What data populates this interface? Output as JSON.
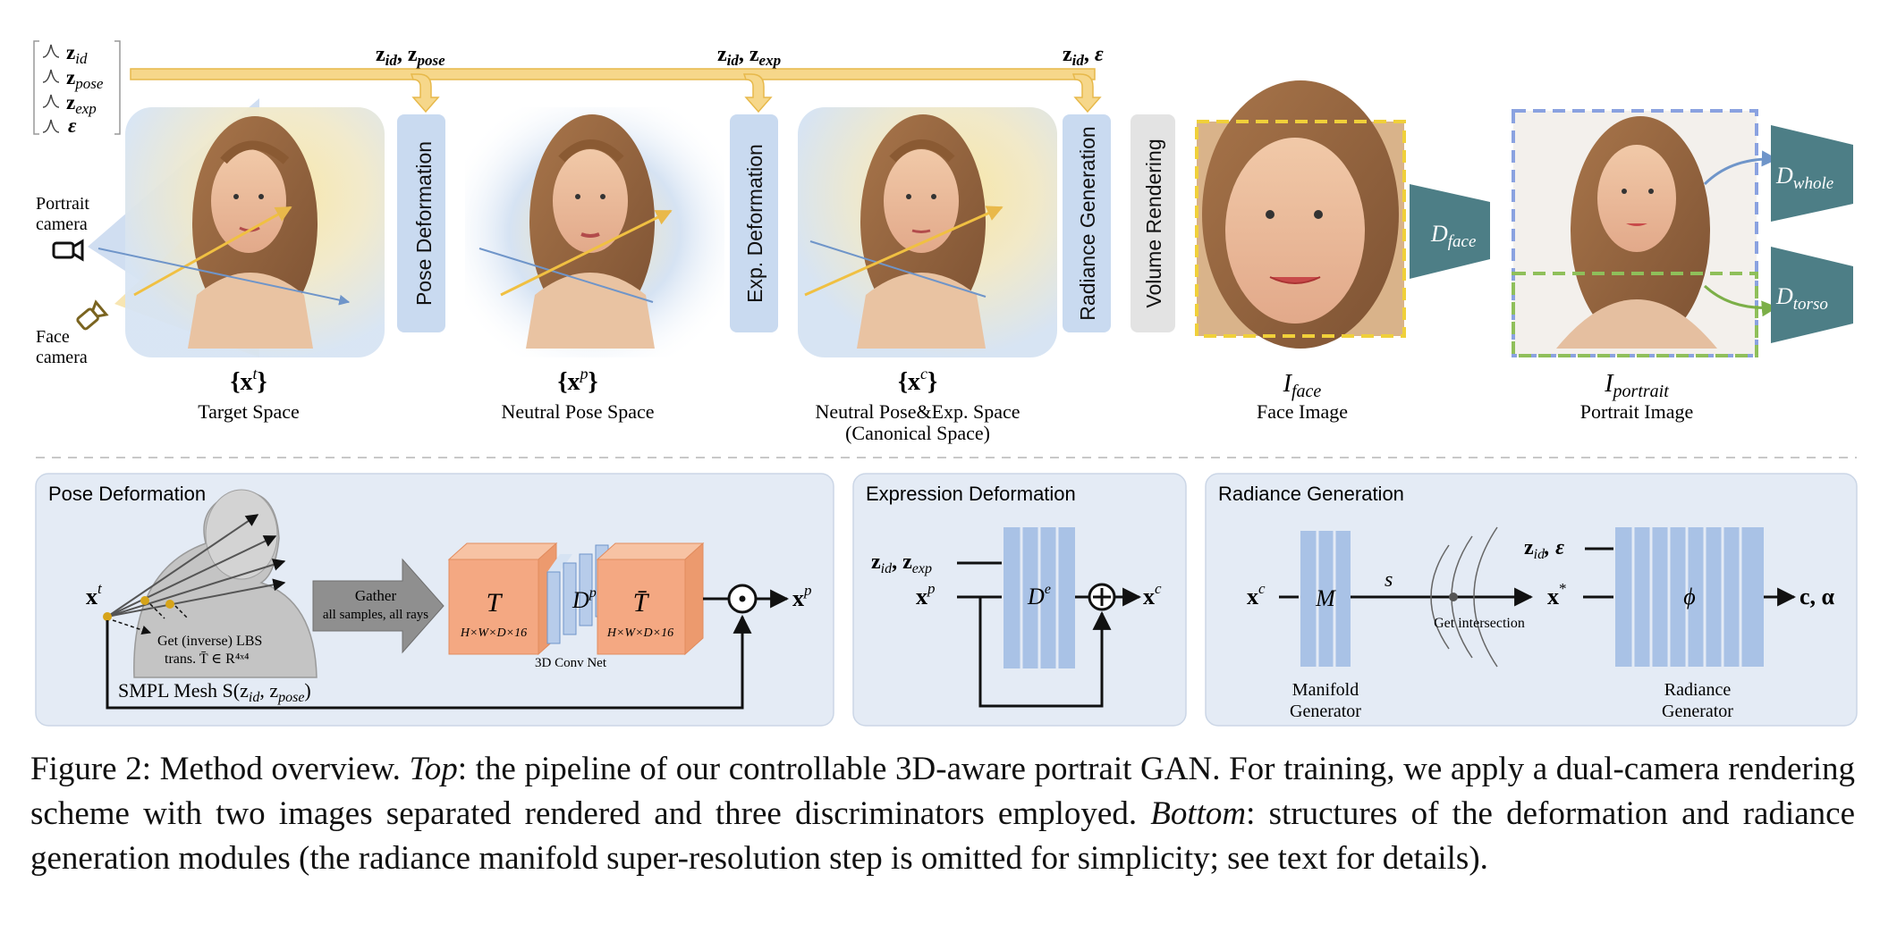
{
  "latent_box": {
    "items": [
      {
        "sym": "z",
        "sub": "id"
      },
      {
        "sym": "z",
        "sub": "pose"
      },
      {
        "sym": "z",
        "sub": "exp"
      },
      {
        "sym": "ε",
        "sub": ""
      }
    ]
  },
  "top_inputs": [
    {
      "a_sym": "z",
      "a_sub": "id",
      "b_sym": "z",
      "b_sub": "pose",
      "sep": ","
    },
    {
      "a_sym": "z",
      "a_sub": "id",
      "b_sym": "z",
      "b_sub": "exp",
      "sep": ","
    },
    {
      "a_sym": "z",
      "a_sub": "id",
      "b_sym": "ε",
      "b_sub": "",
      "sep": ","
    }
  ],
  "cameras": {
    "portrait": [
      "Portrait",
      "camera"
    ],
    "face": [
      "Face",
      "camera"
    ]
  },
  "modules": {
    "pose": "Pose Deformation",
    "exp": "Exp. Deformation",
    "radiance": "Radiance Generation",
    "volume": "Volume Rendering"
  },
  "spaces": [
    {
      "sym": "{x",
      "sup": "t",
      "close": "}",
      "name": "Target Space",
      "name2": ""
    },
    {
      "sym": "{x",
      "sup": "p",
      "close": "}",
      "name": "Neutral Pose Space",
      "name2": ""
    },
    {
      "sym": "{x",
      "sup": "c",
      "close": "}",
      "name": "Neutral Pose&Exp. Space",
      "name2": "(Canonical Space)"
    }
  ],
  "outputs": [
    {
      "sym": "I",
      "sub": "face",
      "name": "Face Image"
    },
    {
      "sym": "I",
      "sub": "portrait",
      "name": "Portrait Image"
    }
  ],
  "discriminators": [
    {
      "sym": "D",
      "sub": "face"
    },
    {
      "sym": "D",
      "sub": "whole"
    },
    {
      "sym": "D",
      "sub": "torso"
    }
  ],
  "pose_panel": {
    "title": "Pose Deformation",
    "input": "x",
    "input_sup": "t",
    "lbs": [
      "Get (inverse) LBS",
      "trans. T̄ ∈ R⁴ˣ⁴"
    ],
    "mesh": "SMPL Mesh S(z",
    "mesh_sub1": "id",
    "mesh_mid": ", z",
    "mesh_sub2": "pose",
    "mesh_end": ")",
    "gather": [
      "Gather",
      "all samples, all rays"
    ],
    "T": "T",
    "Tbar": "T̄",
    "dims": "H×W×D×16",
    "D": "D",
    "D_sup": "p",
    "conv": "3D Conv Net",
    "output": "x",
    "output_sup": "p"
  },
  "exp_panel": {
    "title": "Expression Deformation",
    "in1": "z",
    "in1_sub": "id",
    "in1_mid": ", z",
    "in1_sub2": "exp",
    "in2": "x",
    "in2_sup": "p",
    "D": "D",
    "D_sup": "e",
    "output": "x",
    "output_sup": "c"
  },
  "rad_panel": {
    "title": "Radiance Generation",
    "input": "x",
    "input_sup": "c",
    "M": "M",
    "s": "s",
    "intersect": "Get intersection",
    "mid": "x",
    "mid_sup": "*",
    "cond": "z",
    "cond_sub": "id",
    "cond_end": ", ε",
    "phi": "ϕ",
    "output": "c, α",
    "manifold": [
      "Manifold",
      "Generator"
    ],
    "radiance": [
      "Radiance",
      "Generator"
    ]
  },
  "caption": {
    "label": "Figure 2: Method overview. ",
    "top": "Top",
    "text1": ": the pipeline of our controllable 3D-aware portrait GAN. For training, we apply a dual-camera rendering scheme with two images separated rendered and three discriminators employed. ",
    "bottom": "Bottom",
    "text2": ": structures of the deformation and radiance generation modules (the radiance manifold super-resolution step is omitted for simplicity; see text for details)."
  },
  "colors": {
    "module_blue": "#c9daf0",
    "panel_bg": "#e4ebf5",
    "disc_teal": "#4d7e86",
    "arrow_yellow": "#f5d27a",
    "volume_gray": "#e3e3e3",
    "orange_block": "#f4a882",
    "face_dash": "#f0d03a",
    "portrait_dash": "#8aa2e0",
    "torso_dash": "#8fbf5a"
  }
}
